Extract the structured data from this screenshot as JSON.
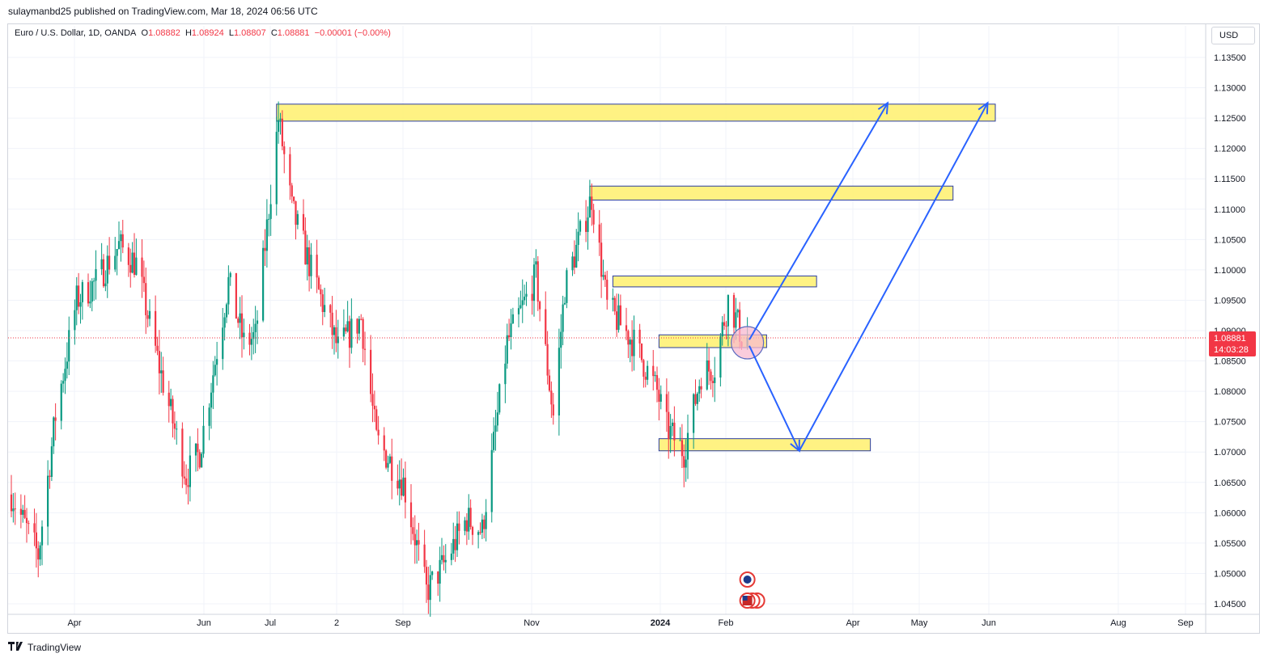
{
  "header": {
    "published_by": "sulaymanbd25 published on TradingView.com, Mar 18, 2024 06:56 UTC"
  },
  "symbol": {
    "name": "Euro / U.S. Dollar, 1D, OANDA",
    "open_label": "O",
    "open": "1.08882",
    "high_label": "H",
    "high": "1.08924",
    "low_label": "L",
    "low": "1.08807",
    "close_label": "C",
    "close": "1.08881",
    "change": "−0.00001 (−0.00%)"
  },
  "currency_button": "USD",
  "price_badge": {
    "price": "1.08881",
    "countdown": "14:03:28"
  },
  "footer": {
    "brand": "TradingView",
    "logo_icon": "tradingview-logo-icon"
  },
  "colors": {
    "up": "#089981",
    "down": "#f23645",
    "zone_fill": "#fff176",
    "zone_stroke": "#2a3ca0",
    "arrow": "#2962ff",
    "grid": "#f0f3fa"
  },
  "chart_data": {
    "type": "candlestick",
    "symbol": "EURUSD",
    "timeframe": "1D",
    "last_price": 1.08881,
    "ylim": [
      1.0415,
      1.139
    ],
    "y_ticks": [
      "1.13500",
      "1.13000",
      "1.12500",
      "1.12000",
      "1.11500",
      "1.11000",
      "1.10500",
      "1.10000",
      "1.09500",
      "1.09000",
      "1.08500",
      "1.08000",
      "1.07500",
      "1.07000",
      "1.06500",
      "1.06000",
      "1.05500",
      "1.05000",
      "1.04500"
    ],
    "x_ticks": [
      {
        "label": "Apr",
        "bold": false
      },
      {
        "label": "Jun",
        "bold": false
      },
      {
        "label": "Jul",
        "bold": false
      },
      {
        "label": "2",
        "bold": false
      },
      {
        "label": "Sep",
        "bold": false
      },
      {
        "label": "Nov",
        "bold": false
      },
      {
        "label": "2024",
        "bold": true
      },
      {
        "label": "Feb",
        "bold": false
      },
      {
        "label": "Apr",
        "bold": false
      },
      {
        "label": "May",
        "bold": false
      },
      {
        "label": "Jun",
        "bold": false
      },
      {
        "label": "Aug",
        "bold": false
      },
      {
        "label": "Sep",
        "bold": false
      }
    ],
    "price_path": [
      [
        "2023-03-01",
        1.063
      ],
      [
        "2023-03-15",
        1.053
      ],
      [
        "2023-03-24",
        1.076
      ],
      [
        "2023-04-04",
        1.095
      ],
      [
        "2023-04-14",
        1.098
      ],
      [
        "2023-04-26",
        1.104
      ],
      [
        "2023-05-05",
        1.101
      ],
      [
        "2023-05-17",
        1.084
      ],
      [
        "2023-05-31",
        1.066
      ],
      [
        "2023-06-07",
        1.07
      ],
      [
        "2023-06-22",
        1.098
      ],
      [
        "2023-06-30",
        1.088
      ],
      [
        "2023-07-06",
        1.089
      ],
      [
        "2023-07-18",
        1.125
      ],
      [
        "2023-07-25",
        1.11
      ],
      [
        "2023-08-04",
        1.1
      ],
      [
        "2023-08-18",
        1.087
      ],
      [
        "2023-08-30",
        1.092
      ],
      [
        "2023-09-07",
        1.072
      ],
      [
        "2023-09-21",
        1.065
      ],
      [
        "2023-10-03",
        1.047
      ],
      [
        "2023-10-13",
        1.052
      ],
      [
        "2023-10-24",
        1.059
      ],
      [
        "2023-11-01",
        1.057
      ],
      [
        "2023-11-14",
        1.088
      ],
      [
        "2023-11-29",
        1.099
      ],
      [
        "2023-12-08",
        1.076
      ],
      [
        "2023-12-14",
        1.097
      ],
      [
        "2023-12-28",
        1.112
      ],
      [
        "2024-01-05",
        1.094
      ],
      [
        "2024-01-19",
        1.088
      ],
      [
        "2024-01-31",
        1.08
      ],
      [
        "2024-02-05",
        1.074
      ],
      [
        "2024-02-14",
        1.07
      ],
      [
        "2024-02-23",
        1.083
      ],
      [
        "2024-03-01",
        1.084
      ],
      [
        "2024-03-08",
        1.095
      ],
      [
        "2024-03-12",
        1.092
      ],
      [
        "2024-03-15",
        1.089
      ],
      [
        "2024-03-18",
        1.0888
      ]
    ],
    "zones": [
      {
        "from": "2023-07-17",
        "to": "2024-07-25",
        "low": 1.1245,
        "high": 1.1273
      },
      {
        "from": "2023-12-27",
        "to": "2024-07-03",
        "low": 1.1115,
        "high": 1.1138
      },
      {
        "from": "2024-01-08",
        "to": "2024-04-23",
        "low": 1.0972,
        "high": 1.099
      },
      {
        "from": "2024-02-01",
        "to": "2024-03-28",
        "low": 1.0872,
        "high": 1.0893
      },
      {
        "from": "2024-02-01",
        "to": "2024-05-21",
        "low": 1.0702,
        "high": 1.0722
      }
    ],
    "highlight_circle": {
      "date": "2024-03-18",
      "price": 1.088
    },
    "arrows": [
      {
        "from": [
          "2024-03-19",
          1.0885
        ],
        "to": [
          "2024-05-30",
          1.1275
        ]
      },
      {
        "from": [
          "2024-03-19",
          1.0875
        ],
        "to": [
          "2024-04-14",
          1.0702
        ]
      },
      {
        "from": [
          "2024-04-14",
          1.0702
        ],
        "to": [
          "2024-07-21",
          1.1275
        ]
      }
    ],
    "event_markers": [
      {
        "date": "2024-03-18",
        "type": "economic-event-icon",
        "count": 1
      },
      {
        "date": "2024-03-18",
        "type": "us-flag-icon",
        "count": 3
      }
    ]
  }
}
